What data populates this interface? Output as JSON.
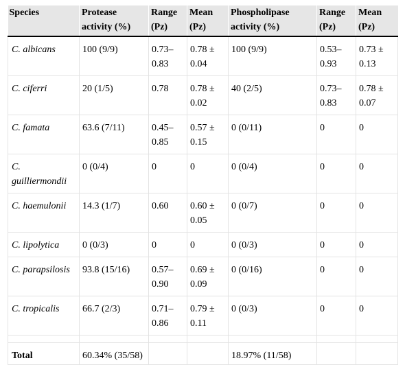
{
  "headers": {
    "species": "Species",
    "protease_activity": "Protease activity (%)",
    "range_1": "Range (Pz)",
    "mean_1": "Mean (Pz)",
    "phospholipase_activity": "Phospholipase activity (%)",
    "range_2": "Range (Pz)",
    "mean_2": "Mean (Pz)"
  },
  "rows": [
    {
      "species": "C. albicans",
      "protease": "100 (9/9)",
      "prot_range": "0.73–0.83",
      "prot_mean": "0.78 ± 0.04",
      "phospho": "100 (9/9)",
      "phos_range": "0.53–0.93",
      "phos_mean": "0.73 ± 0.13"
    },
    {
      "species": "C. ciferri",
      "protease": "20 (1/5)",
      "prot_range": "0.78",
      "prot_mean": "0.78 ± 0.02",
      "phospho": "40 (2/5)",
      "phos_range": "0.73–0.83",
      "phos_mean": "0.78 ± 0.07"
    },
    {
      "species": "C. famata",
      "protease": "63.6 (7/11)",
      "prot_range": "0.45–0.85",
      "prot_mean": "0.57 ± 0.15",
      "phospho": "0 (0/11)",
      "phos_range": "0",
      "phos_mean": "0"
    },
    {
      "species": "C. guilliermondii",
      "protease": "0 (0/4)",
      "prot_range": "0",
      "prot_mean": "0",
      "phospho": "0 (0/4)",
      "phos_range": "0",
      "phos_mean": "0"
    },
    {
      "species": "C. haemulonii",
      "protease": "14.3 (1/7)",
      "prot_range": "0.60",
      "prot_mean": "0.60 ± 0.05",
      "phospho": "0 (0/7)",
      "phos_range": "0",
      "phos_mean": "0"
    },
    {
      "species": "C. lipolytica",
      "protease": "0 (0/3)",
      "prot_range": "0",
      "prot_mean": "0",
      "phospho": "0 (0/3)",
      "phos_range": "0",
      "phos_mean": "0"
    },
    {
      "species": "C. parapsilosis",
      "protease": "93.8 (15/16)",
      "prot_range": "0.57–0.90",
      "prot_mean": "0.69 ± 0.09",
      "phospho": "0 (0/16)",
      "phos_range": "0",
      "phos_mean": "0"
    },
    {
      "species": "C. tropicalis",
      "protease": "66.7 (2/3)",
      "prot_range": "0.71–0.86",
      "prot_mean": "0.79 ± 0.11",
      "phospho": "0 (0/3)",
      "phos_range": "0",
      "phos_mean": "0"
    }
  ],
  "total": {
    "label": "Total",
    "protease": "60.34% (35/58)",
    "phospho": "18.97% (11/58)"
  },
  "colors": {
    "header_background": "#e6e6e6",
    "cell_border": "#e3e3e3"
  }
}
